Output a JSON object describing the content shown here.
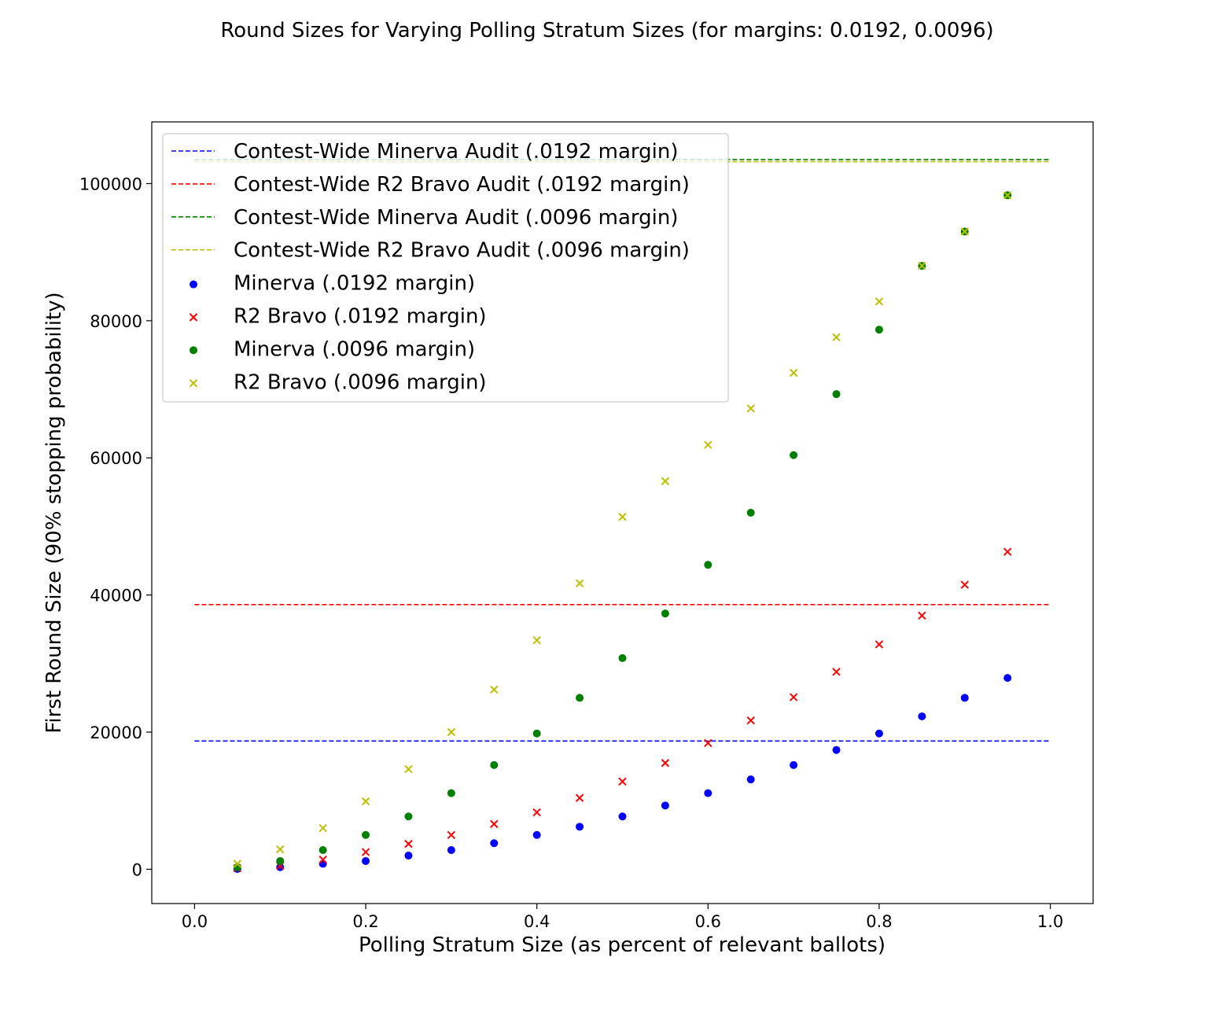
{
  "chart_data": {
    "type": "scatter",
    "title": "Round Sizes for Varying Polling Stratum Sizes (for margins: 0.0192, 0.0096)",
    "xlabel": "Polling Stratum Size (as percent of relevant ballots)",
    "ylabel": "First Round Size (90% stopping probability)",
    "xlim": [
      -0.05,
      1.05
    ],
    "ylim": [
      -5000,
      109000
    ],
    "x_ticks": [
      0.0,
      0.2,
      0.4,
      0.6,
      0.8,
      1.0
    ],
    "x_tick_labels": [
      "0.0",
      "0.2",
      "0.4",
      "0.6",
      "0.8",
      "1.0"
    ],
    "y_ticks": [
      0,
      20000,
      40000,
      60000,
      80000,
      100000
    ],
    "y_tick_labels": [
      "0",
      "20000",
      "40000",
      "60000",
      "80000",
      "100000"
    ],
    "grid": false,
    "legend_position": "top-left",
    "hlines": [
      {
        "name": "Contest-Wide Minerva Audit (.0192 margin)",
        "y": 18700,
        "x_range": [
          0.0,
          1.0
        ],
        "color": "#0000ff",
        "style": "dashed"
      },
      {
        "name": "Contest-Wide R2 Bravo Audit (.0192 margin)",
        "y": 38600,
        "x_range": [
          0.0,
          1.0
        ],
        "color": "#ff0000",
        "style": "dashed"
      },
      {
        "name": "Contest-Wide Minerva Audit (.0096 margin)",
        "y": 103500,
        "x_range": [
          0.0,
          1.0
        ],
        "color": "#008000",
        "style": "dashed"
      },
      {
        "name": "Contest-Wide R2 Bravo Audit (.0096 margin)",
        "y": 103200,
        "x_range": [
          0.0,
          1.0
        ],
        "color": "#bfbf00",
        "style": "dashed"
      }
    ],
    "x": [
      0.05,
      0.1,
      0.15,
      0.2,
      0.25,
      0.3,
      0.35,
      0.4,
      0.45,
      0.5,
      0.55,
      0.6,
      0.65,
      0.7,
      0.75,
      0.8,
      0.85,
      0.9,
      0.95
    ],
    "series": [
      {
        "name": "Minerva (.0192 margin)",
        "marker": "circle",
        "color": "#0000ff",
        "values": [
          50,
          300,
          800,
          1200,
          2000,
          2800,
          3800,
          5000,
          6200,
          7700,
          9300,
          11100,
          13100,
          15200,
          17400,
          19800,
          22300,
          25000,
          27900
        ]
      },
      {
        "name": "R2 Bravo (.0192 margin)",
        "marker": "x",
        "color": "#ff0000",
        "values": [
          150,
          500,
          1400,
          2500,
          3700,
          5000,
          6600,
          8300,
          10400,
          12800,
          15500,
          18400,
          21700,
          25100,
          28800,
          32800,
          37000,
          41500,
          46300
        ]
      },
      {
        "name": "Minerva (.0096 margin)",
        "marker": "circle",
        "color": "#008000",
        "values": [
          300,
          1200,
          2800,
          5000,
          7700,
          11100,
          15200,
          19800,
          25000,
          30800,
          37300,
          44400,
          52000,
          60400,
          69300,
          78700,
          88000,
          93000,
          98300
        ]
      },
      {
        "name": "R2 Bravo (.0096 margin)",
        "marker": "x",
        "color": "#bfbf00",
        "values": [
          800,
          2900,
          6000,
          9900,
          14600,
          20000,
          26200,
          33400,
          41700,
          51400,
          56600,
          61900,
          67200,
          72400,
          77600,
          82800,
          88000,
          93000,
          98300
        ]
      }
    ]
  }
}
